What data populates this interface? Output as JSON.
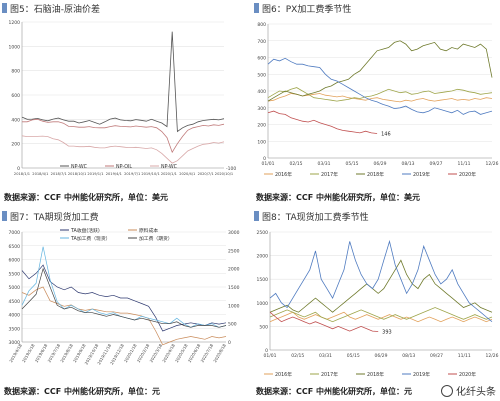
{
  "chart_data": [
    {
      "panel_title": "图5：石脑油-原油价差",
      "type": "line",
      "x_tick_labels": [
        "2018/1/1",
        "2018/4/1",
        "2018/7/1",
        "2018/10/1",
        "2019/1/1",
        "2019/4/1",
        "2019/7/1",
        "2019/10/1",
        "2020/1/1",
        "2020/4/1",
        "2020/7/1",
        "2020/10/1"
      ],
      "y_tick_labels": [
        "1200",
        "1000",
        "800",
        "600",
        "400",
        "200",
        "0"
      ],
      "y2_tick_labels": [
        "-100"
      ],
      "ylim": [
        0,
        1200
      ],
      "series": [
        {
          "name": "",
          "color": "#555555",
          "values": [
            418,
            400,
            402,
            408,
            395,
            388,
            402,
            410,
            395,
            385,
            385,
            370,
            380,
            390,
            375,
            360,
            380,
            402,
            410,
            395,
            390,
            388,
            398,
            392,
            385,
            400,
            385,
            370,
            340,
            1120,
            300,
            330,
            350,
            360,
            380,
            390,
            395,
            400,
            395,
            405
          ]
        },
        {
          "name": "",
          "color": "#c07a7a",
          "values": [
            380,
            380,
            395,
            400,
            385,
            375,
            380,
            380,
            368,
            342,
            340,
            335,
            335,
            340,
            332,
            330,
            330,
            340,
            348,
            342,
            340,
            338,
            345,
            340,
            335,
            340,
            330,
            300,
            250,
            130,
            200,
            260,
            310,
            330,
            340,
            350,
            345,
            355,
            350,
            360
          ]
        },
        {
          "name": "",
          "color": "#d8a8a8",
          "values": [
            265,
            258,
            260,
            260,
            262,
            258,
            240,
            232,
            210,
            180,
            180,
            175,
            175,
            178,
            170,
            165,
            165,
            175,
            180,
            175,
            170,
            168,
            170,
            165,
            160,
            165,
            150,
            120,
            80,
            40,
            60,
            100,
            140,
            160,
            180,
            195,
            200,
            210,
            205,
            215
          ]
        }
      ],
      "legend": [
        "NP-WC",
        "NP-OIL",
        "NP-WC"
      ],
      "source_label": "数据来源：CCF  中州能化研究所，单位：美元"
    },
    {
      "panel_title": "图6：PX加工费季节性",
      "type": "line",
      "x_tick_labels": [
        "01/01",
        "02/15",
        "03/31",
        "05/15",
        "06/29",
        "08/13",
        "09/27",
        "11/11",
        "12/26"
      ],
      "y_tick_labels": [
        "800",
        "700",
        "600",
        "500",
        "400",
        "300",
        "200",
        "100",
        "0"
      ],
      "ylim": [
        0,
        800
      ],
      "annotation": "146",
      "series": [
        {
          "name": "2016年",
          "color": "#e2a15b",
          "values": [
            340,
            345,
            360,
            370,
            385,
            380,
            370,
            375,
            380,
            385,
            375,
            370,
            365,
            370,
            360,
            355,
            350,
            345,
            355,
            360,
            350,
            345,
            340,
            335,
            345,
            340,
            350,
            355,
            345,
            340,
            345,
            350,
            355,
            345,
            350,
            345,
            355,
            350,
            360,
            355
          ]
        },
        {
          "name": "2017年",
          "color": "#9ea54a",
          "values": [
            360,
            380,
            400,
            395,
            410,
            420,
            400,
            380,
            360,
            355,
            350,
            345,
            340,
            345,
            350,
            360,
            355,
            365,
            370,
            380,
            395,
            410,
            400,
            390,
            395,
            380,
            385,
            395,
            400,
            385,
            390,
            395,
            400,
            410,
            405,
            395,
            390,
            380,
            385,
            390
          ]
        },
        {
          "name": "2018年",
          "color": "#6f7a2c",
          "values": [
            340,
            360,
            380,
            400,
            390,
            380,
            370,
            380,
            390,
            400,
            420,
            430,
            450,
            460,
            470,
            500,
            520,
            560,
            600,
            640,
            650,
            660,
            690,
            700,
            680,
            640,
            650,
            670,
            680,
            690,
            650,
            640,
            660,
            650,
            680,
            670,
            660,
            680,
            650,
            480
          ]
        },
        {
          "name": "2019年",
          "color": "#4f7bc0",
          "values": [
            560,
            590,
            580,
            595,
            575,
            560,
            560,
            550,
            545,
            540,
            500,
            470,
            460,
            440,
            420,
            400,
            380,
            360,
            345,
            335,
            320,
            310,
            295,
            300,
            310,
            290,
            275,
            270,
            280,
            300,
            290,
            280,
            270,
            285,
            260,
            275,
            280,
            260,
            270,
            280
          ]
        },
        {
          "name": "2020年",
          "color": "#c04f4f",
          "values": [
            270,
            280,
            265,
            260,
            240,
            230,
            220,
            215,
            225,
            210,
            200,
            190,
            175,
            165,
            160,
            155,
            150,
            160,
            150,
            146,
            null,
            null,
            null,
            null,
            null,
            null,
            null,
            null,
            null,
            null,
            null,
            null,
            null,
            null,
            null,
            null,
            null,
            null,
            null,
            null
          ]
        }
      ],
      "source_label": "数据来源：CCF  中州能化研究所，单位：美元"
    },
    {
      "panel_title": "图7：TA期现货加工费",
      "type": "line",
      "x_tick_labels": [
        "2019/4/18",
        "2019/5/18",
        "2019/6/18",
        "2019/7/18",
        "2019/8/18",
        "2019/9/18",
        "2019/10/18",
        "2019/11/18",
        "2019/12/18",
        "2020/1/18",
        "2020/2/18",
        "2020/3/18",
        "2020/4/18",
        "2020/5/18",
        "2020/6/18",
        "2020/7/18",
        "2020/8/18"
      ],
      "y_tick_labels": [
        "7000",
        "6500",
        "6000",
        "5500",
        "5000",
        "4500",
        "4000",
        "3500",
        "3000"
      ],
      "y2_tick_labels": [
        "3000",
        "2500",
        "2000",
        "1500",
        "1000",
        "500",
        "0"
      ],
      "ylim": [
        3000,
        7000
      ],
      "y2lim": [
        0,
        3000
      ],
      "series": [
        {
          "name": "TA收盘(活跃)",
          "color": "#2f3a70",
          "values": [
            5600,
            5300,
            5500,
            5800,
            5200,
            5000,
            4900,
            5000,
            4800,
            4750,
            4800,
            4700,
            4650,
            4700,
            4600,
            4600,
            4500,
            4400,
            4300,
            3900,
            3400,
            3500,
            3600,
            3650,
            3700,
            3650,
            3600,
            3700,
            3650,
            3700
          ]
        },
        {
          "name": "原料成本",
          "color": "#c98b5a",
          "values": [
            4800,
            4700,
            4900,
            5000,
            4500,
            4400,
            4300,
            4350,
            4200,
            4150,
            4200,
            4150,
            4100,
            4100,
            4050,
            4050,
            4000,
            3950,
            3850,
            3400,
            2900,
            3000,
            3100,
            3150,
            3200,
            3150,
            3100,
            3200,
            3150,
            3200
          ]
        },
        {
          "name": "TA加工费（现货）",
          "color": "#64b5e0",
          "axis": "right",
          "values": [
            1000,
            1400,
            1600,
            2600,
            1700,
            1100,
            900,
            1000,
            900,
            800,
            900,
            800,
            750,
            800,
            700,
            650,
            600,
            700,
            650,
            600,
            550,
            500,
            650,
            500,
            400,
            500,
            450,
            500,
            400,
            450
          ]
        },
        {
          "name": "加工费（期货）",
          "color": "#444444",
          "axis": "right",
          "values": [
            900,
            1100,
            1300,
            2000,
            1500,
            1000,
            900,
            950,
            850,
            800,
            800,
            750,
            700,
            750,
            700,
            650,
            600,
            650,
            600,
            550,
            500,
            500,
            550,
            450,
            400,
            450,
            450,
            450,
            400,
            450
          ]
        }
      ],
      "source_label": "数据来源：CCF  中州能化研究所，单位：元"
    },
    {
      "panel_title": "图8：TA现货加工费季节性",
      "type": "line",
      "x_tick_labels": [
        "01/01",
        "02/15",
        "03/31",
        "05/15",
        "06/29",
        "08/13",
        "09/27",
        "11/11",
        "12/26"
      ],
      "y_tick_labels": [
        "2500",
        "2000",
        "1500",
        "1000",
        "500",
        "0"
      ],
      "ylim": [
        0,
        2500
      ],
      "annotation": "393",
      "series": [
        {
          "name": "2016年",
          "color": "#e2a15b",
          "values": [
            600,
            650,
            700,
            750,
            800,
            700,
            650,
            700,
            750,
            700,
            650,
            700,
            750,
            800,
            700,
            650,
            700,
            750,
            700,
            650,
            700,
            750,
            700,
            650,
            700,
            650,
            600,
            650,
            700,
            650,
            600,
            650,
            700,
            650,
            600,
            650,
            700,
            650,
            600,
            650
          ]
        },
        {
          "name": "2017年",
          "color": "#9ea54a",
          "values": [
            700,
            750,
            800,
            850,
            800,
            750,
            700,
            750,
            800,
            700,
            650,
            600,
            650,
            700,
            750,
            800,
            850,
            800,
            750,
            700,
            650,
            700,
            750,
            700,
            650,
            700,
            750,
            800,
            850,
            900,
            850,
            800,
            750,
            700,
            650,
            700,
            750,
            700,
            650,
            700
          ]
        },
        {
          "name": "2018年",
          "color": "#6f7a2c",
          "values": [
            800,
            850,
            900,
            950,
            850,
            800,
            900,
            1000,
            1100,
            1000,
            900,
            800,
            900,
            1000,
            1100,
            1200,
            1300,
            1400,
            1300,
            1200,
            1300,
            1500,
            1700,
            1900,
            1600,
            1400,
            1300,
            1500,
            1600,
            1400,
            1300,
            1200,
            1100,
            1000,
            900,
            950,
            1000,
            900,
            850,
            800
          ]
        },
        {
          "name": "2019年",
          "color": "#4f7bc0",
          "values": [
            1100,
            1200,
            1000,
            900,
            1100,
            1300,
            1500,
            1700,
            2100,
            1500,
            1300,
            1100,
            1400,
            1700,
            2300,
            1900,
            1600,
            1400,
            1300,
            1500,
            1900,
            2300,
            1800,
            1500,
            1200,
            1400,
            1700,
            2200,
            1900,
            1600,
            1400,
            1500,
            1700,
            1400,
            1200,
            1000,
            900,
            800,
            700,
            600
          ]
        },
        {
          "name": "2020年",
          "color": "#c04f4f",
          "values": [
            800,
            700,
            600,
            650,
            700,
            650,
            600,
            550,
            600,
            550,
            500,
            450,
            500,
            450,
            400,
            450,
            500,
            450,
            400,
            393,
            null,
            null,
            null,
            null,
            null,
            null,
            null,
            null,
            null,
            null,
            null,
            null,
            null,
            null,
            null,
            null,
            null,
            null,
            null,
            null
          ]
        }
      ],
      "source_label": "数据来源：CCF  中州能化研究所，单位：元"
    }
  ],
  "watermark": "化纤头条",
  "colors": {
    "accent": "#6a8ec2",
    "grid": "#e3e3e3"
  }
}
